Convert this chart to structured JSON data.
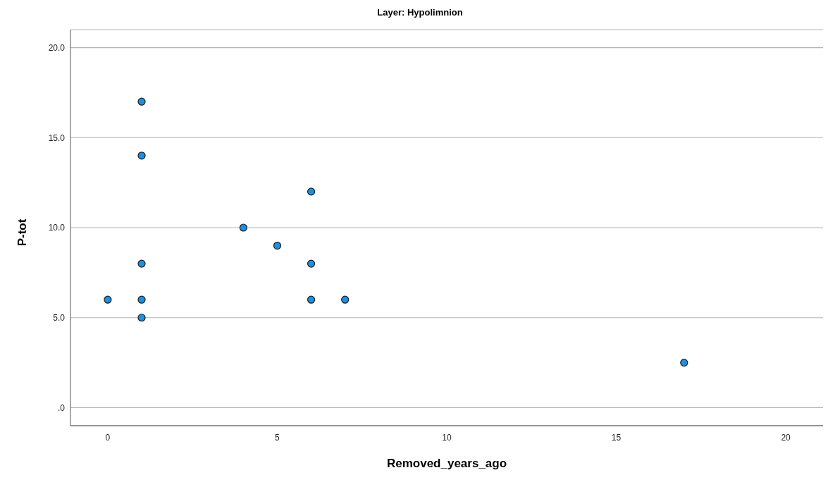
{
  "chart_data": {
    "type": "scatter",
    "title": "Layer: Hypolimnion",
    "xlabel": "Removed_years_ago",
    "ylabel": "P-tot",
    "x": [
      0,
      1,
      1,
      1,
      1,
      1,
      4,
      5,
      6,
      6,
      6,
      7,
      17
    ],
    "series": [
      {
        "color": "#1f8fdf",
        "values": [
          6,
          17,
          14,
          8,
          6,
          5,
          10,
          9,
          12,
          8,
          6,
          6,
          2.5
        ]
      }
    ],
    "xlim": [
      -1.1,
      21.1
    ],
    "xticks": [
      0,
      5,
      10,
      15,
      20
    ],
    "ylim": [
      -1,
      21
    ],
    "yticks": [
      {
        "value": 0,
        "label": ".0"
      },
      {
        "value": 5,
        "label": "5.0"
      },
      {
        "value": 10,
        "label": "10.0"
      },
      {
        "value": 15,
        "label": "15.0"
      },
      {
        "value": 20,
        "label": "20.0"
      }
    ],
    "grid": "y",
    "marker": "circle"
  }
}
